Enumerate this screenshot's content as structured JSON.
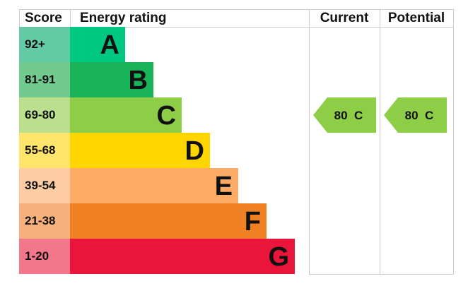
{
  "chart_data": {
    "type": "table",
    "columns": [
      "Score",
      "Energy rating",
      "Current",
      "Potential"
    ],
    "bands": [
      {
        "letter": "A",
        "range": "92+",
        "color": "#00c781",
        "score_color": "#64c9a5"
      },
      {
        "letter": "B",
        "range": "81-91",
        "color": "#19b459",
        "score_color": "#71cb8e"
      },
      {
        "letter": "C",
        "range": "69-80",
        "color": "#8dce46",
        "score_color": "#badf8e"
      },
      {
        "letter": "D",
        "range": "55-68",
        "color": "#ffd500",
        "score_color": "#ffe56c"
      },
      {
        "letter": "E",
        "range": "39-54",
        "color": "#fcaa65",
        "score_color": "#fdcca2"
      },
      {
        "letter": "F",
        "range": "21-38",
        "color": "#ef8023",
        "score_color": "#f5b07b"
      },
      {
        "letter": "G",
        "range": "1-20",
        "color": "#e9153b",
        "score_color": "#f2778b"
      }
    ],
    "current": {
      "score": 80,
      "letter": "C",
      "label": "80  C",
      "color": "#8dce46"
    },
    "potential": {
      "score": 80,
      "letter": "C",
      "label": "80  C",
      "color": "#8dce46"
    }
  }
}
